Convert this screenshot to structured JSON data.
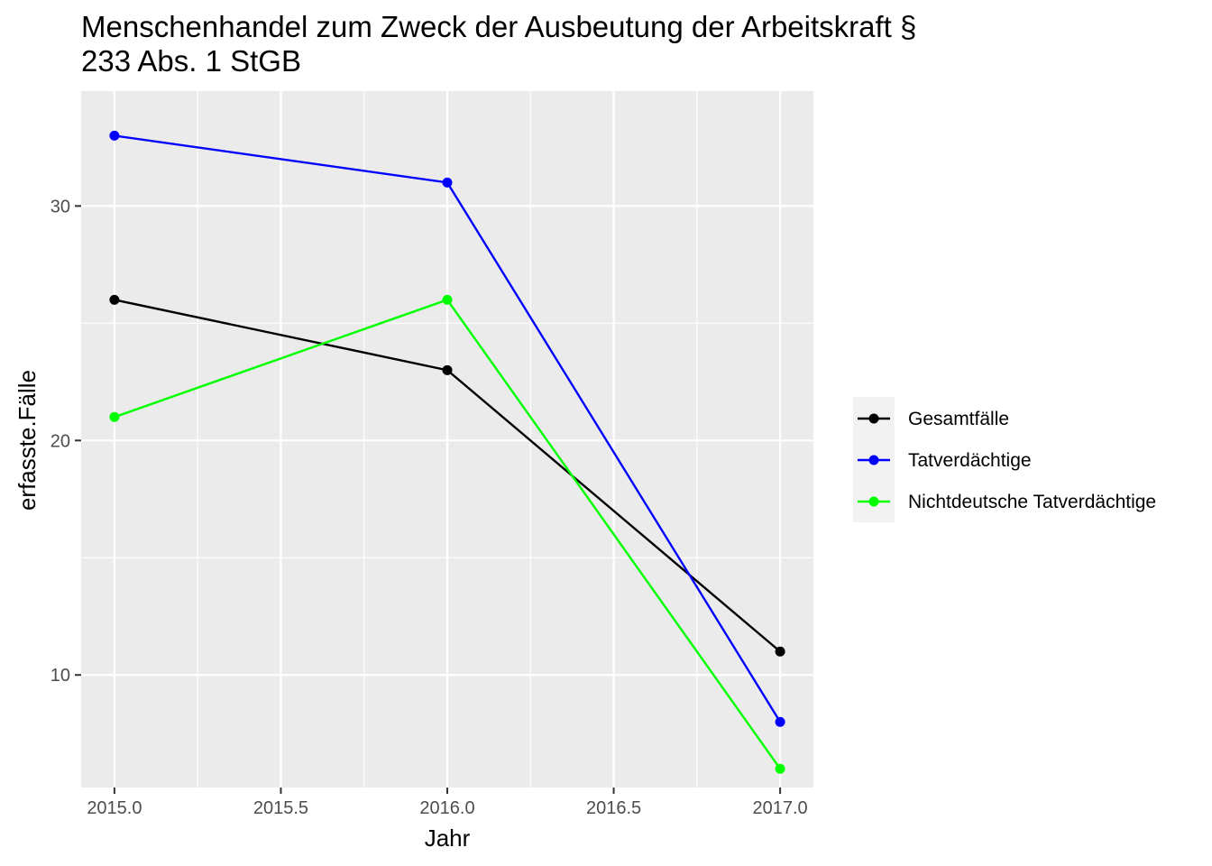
{
  "chart_data": {
    "type": "line",
    "title_lines": [
      "Menschenhandel zum Zweck der Ausbeutung der Arbeitskraft §",
      "233 Abs. 1 StGB"
    ],
    "xlabel": "Jahr",
    "ylabel": "erfasste.Fälle",
    "x": [
      2015,
      2016,
      2017
    ],
    "xlim": [
      2014.9,
      2017.1
    ],
    "ylim": [
      5.2,
      34.9
    ],
    "x_ticks": [
      2015.0,
      2015.5,
      2016.0,
      2016.5,
      2017.0
    ],
    "x_tick_labels": [
      "2015.0",
      "2015.5",
      "2016.0",
      "2016.5",
      "2017.0"
    ],
    "y_ticks": [
      10,
      20,
      30
    ],
    "y_tick_labels": [
      "10",
      "20",
      "30"
    ],
    "grid": true,
    "legend_position": "right",
    "series": [
      {
        "name": "Gesamtfälle",
        "color": "#000000",
        "values": [
          26,
          23,
          11
        ]
      },
      {
        "name": "Tatverdächtige",
        "color": "#0000ff",
        "values": [
          33,
          31,
          8
        ]
      },
      {
        "name": "Nichtdeutsche Tatverdächtige",
        "color": "#00ff00",
        "values": [
          21,
          26,
          6
        ]
      }
    ]
  }
}
